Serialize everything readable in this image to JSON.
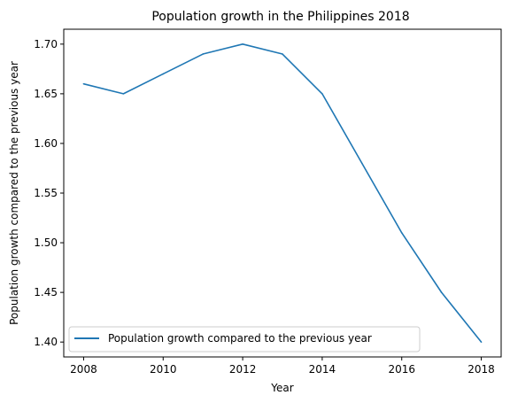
{
  "chart_data": {
    "type": "line",
    "title": "Population growth in the Philippines 2018",
    "xlabel": "Year",
    "ylabel": "Population growth compared to the previous year",
    "x": [
      2008,
      2009,
      2010,
      2011,
      2012,
      2013,
      2014,
      2015,
      2016,
      2017,
      2018
    ],
    "series": [
      {
        "name": "Population growth compared to the previous year",
        "values": [
          1.66,
          1.65,
          1.67,
          1.69,
          1.7,
          1.69,
          1.65,
          1.58,
          1.51,
          1.45,
          1.4
        ],
        "color": "#1f77b4"
      }
    ],
    "xticks": [
      "2008",
      "2010",
      "2012",
      "2014",
      "2016",
      "2018"
    ],
    "yticks": [
      "1.40",
      "1.45",
      "1.50",
      "1.55",
      "1.60",
      "1.65",
      "1.70"
    ],
    "xlim": [
      2007.5,
      2018.5
    ],
    "ylim": [
      1.385,
      1.715
    ],
    "grid": false,
    "legend_position": "lower-left"
  }
}
